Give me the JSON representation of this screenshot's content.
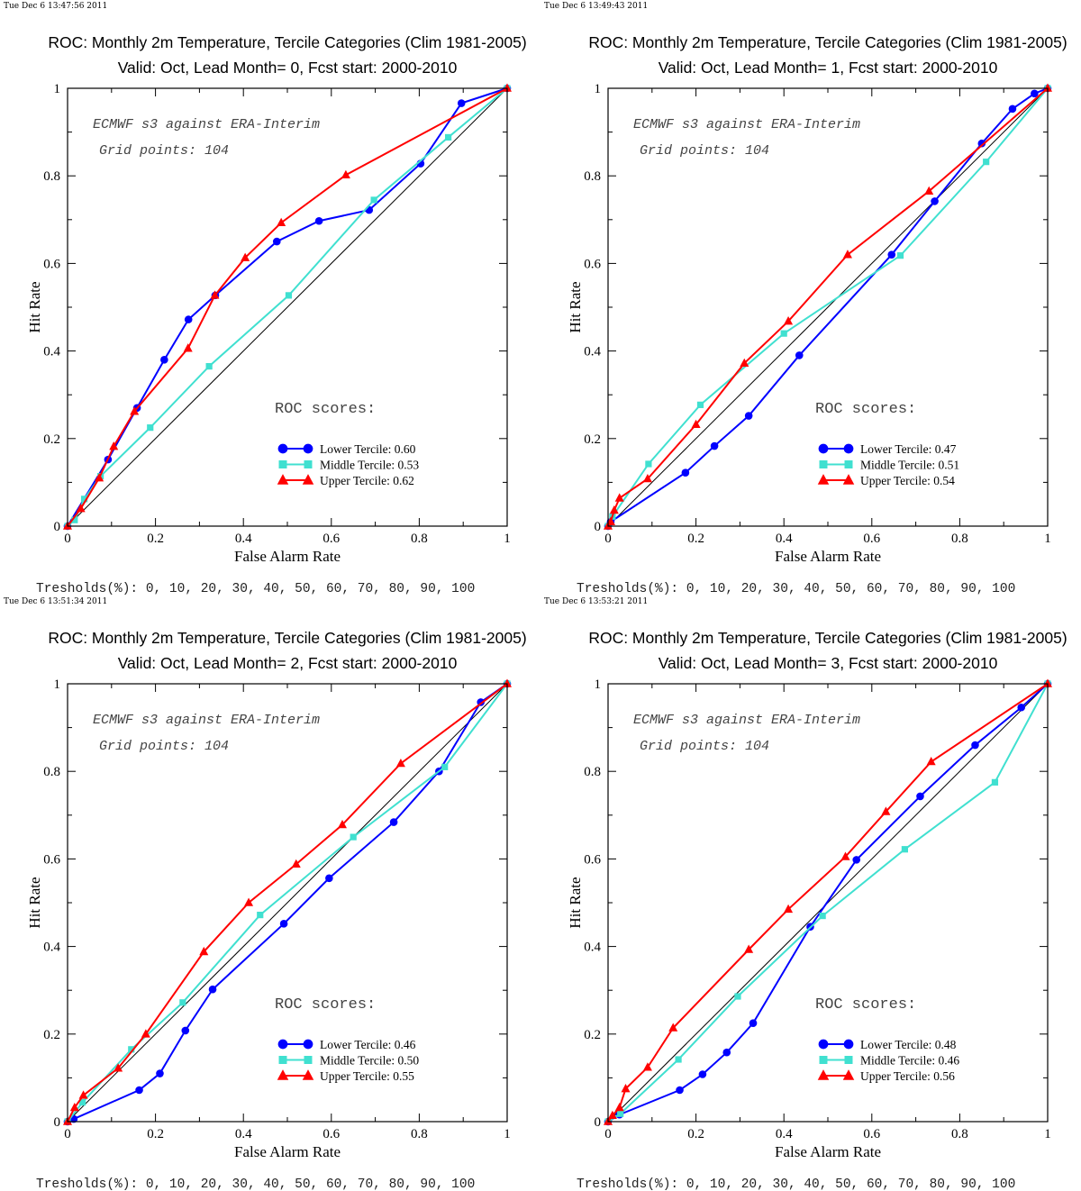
{
  "chart_data": [
    {
      "type": "line",
      "timestamp": "Tue Dec  6 13:47:56 2011",
      "title": "ROC: Monthly 2m Temperature, Tercile Categories (Clim 1981-2005)",
      "subtitle": "Valid: Oct, Lead Month= 0, Fcst start: 2000-2010",
      "xlabel": "False Alarm Rate",
      "ylabel": "Hit Rate",
      "xlim": [
        0,
        1
      ],
      "ylim": [
        0,
        1
      ],
      "xticks": [
        "0",
        "0.2",
        "0.4",
        "0.6",
        "0.8",
        "1"
      ],
      "yticks": [
        "0",
        "0.2",
        "0.4",
        "0.6",
        "0.8",
        "1"
      ],
      "annotation1": "ECMWF s3 against ERA-Interim",
      "annotation2": "Grid points:  104",
      "scores_heading": "ROC scores:",
      "thresholds": "Tresholds(%): 0, 10, 20, 30, 40, 50, 60, 70, 80, 90, 100",
      "series": [
        {
          "name": "Lower Tercile: 0.60",
          "color": "#0000ff",
          "marker": "circle",
          "x": [
            0,
            0.092,
            0.158,
            0.22,
            0.275,
            0.336,
            0.476,
            0.572,
            0.686,
            0.803,
            0.896,
            1
          ],
          "y": [
            0,
            0.152,
            0.27,
            0.38,
            0.472,
            0.527,
            0.65,
            0.697,
            0.722,
            0.828,
            0.966,
            1
          ]
        },
        {
          "name": "Middle Tercile: 0.53",
          "color": "#40e0d0",
          "marker": "square",
          "x": [
            0,
            0.016,
            0.038,
            0.075,
            0.188,
            0.322,
            0.503,
            0.697,
            0.866,
            1
          ],
          "y": [
            0,
            0.014,
            0.062,
            0.114,
            0.225,
            0.365,
            0.527,
            0.745,
            0.888,
            1
          ]
        },
        {
          "name": "Upper Tercile: 0.62",
          "color": "#ff0000",
          "marker": "triangle",
          "x": [
            0,
            0.03,
            0.072,
            0.105,
            0.152,
            0.274,
            0.335,
            0.404,
            0.486,
            0.633,
            1
          ],
          "y": [
            0,
            0.04,
            0.11,
            0.182,
            0.262,
            0.406,
            0.527,
            0.613,
            0.693,
            0.802,
            1
          ]
        }
      ]
    },
    {
      "type": "line",
      "timestamp": "Tue Dec  6 13:49:43 2011",
      "title": "ROC: Monthly 2m Temperature, Tercile Categories (Clim 1981-2005)",
      "subtitle": "Valid: Oct, Lead Month= 1, Fcst start: 2000-2010",
      "xlabel": "False Alarm Rate",
      "ylabel": "Hit Rate",
      "xlim": [
        0,
        1
      ],
      "ylim": [
        0,
        1
      ],
      "xticks": [
        "0",
        "0.2",
        "0.4",
        "0.6",
        "0.8",
        "1"
      ],
      "yticks": [
        "0",
        "0.2",
        "0.4",
        "0.6",
        "0.8",
        "1"
      ],
      "annotation1": "ECMWF s3 against ERA-Interim",
      "annotation2": "Grid points:  104",
      "scores_heading": "ROC scores:",
      "thresholds": "Tresholds(%): 0, 10, 20, 30, 40, 50, 60, 70, 80, 90, 100",
      "series": [
        {
          "name": "Lower Tercile: 0.47",
          "color": "#0000ff",
          "marker": "circle",
          "x": [
            0,
            0.006,
            0.176,
            0.242,
            0.32,
            0.435,
            0.645,
            0.743,
            0.85,
            0.92,
            0.97,
            1
          ],
          "y": [
            0,
            0.01,
            0.122,
            0.183,
            0.252,
            0.39,
            0.62,
            0.742,
            0.874,
            0.953,
            0.988,
            1
          ]
        },
        {
          "name": "Middle Tercile: 0.51",
          "color": "#40e0d0",
          "marker": "square",
          "x": [
            0,
            0.01,
            0.092,
            0.21,
            0.4,
            0.665,
            0.86,
            1
          ],
          "y": [
            0,
            0.022,
            0.142,
            0.277,
            0.44,
            0.618,
            0.832,
            1
          ]
        },
        {
          "name": "Upper Tercile: 0.54",
          "color": "#ff0000",
          "marker": "triangle",
          "x": [
            0,
            0.006,
            0.014,
            0.026,
            0.09,
            0.2,
            0.31,
            0.41,
            0.545,
            0.73,
            1
          ],
          "y": [
            0,
            0.01,
            0.036,
            0.064,
            0.108,
            0.232,
            0.372,
            0.468,
            0.62,
            0.765,
            1
          ]
        }
      ]
    },
    {
      "type": "line",
      "timestamp": "Tue Dec  6 13:51:34 2011",
      "title": "ROC: Monthly 2m Temperature, Tercile Categories (Clim 1981-2005)",
      "subtitle": "Valid: Oct, Lead Month= 2, Fcst start: 2000-2010",
      "xlabel": "False Alarm Rate",
      "ylabel": "Hit Rate",
      "xlim": [
        0,
        1
      ],
      "ylim": [
        0,
        1
      ],
      "xticks": [
        "0",
        "0.2",
        "0.4",
        "0.6",
        "0.8",
        "1"
      ],
      "yticks": [
        "0",
        "0.2",
        "0.4",
        "0.6",
        "0.8",
        "1"
      ],
      "annotation1": "ECMWF s3 against ERA-Interim",
      "annotation2": "Grid points:  104",
      "scores_heading": "ROC scores:",
      "thresholds": "Tresholds(%): 0, 10, 20, 30, 40, 50, 60, 70, 80, 90, 100",
      "series": [
        {
          "name": "Lower Tercile: 0.46",
          "color": "#0000ff",
          "marker": "circle",
          "x": [
            0,
            0.014,
            0.163,
            0.21,
            0.268,
            0.33,
            0.492,
            0.595,
            0.742,
            0.845,
            0.94,
            1
          ],
          "y": [
            0,
            0.006,
            0.072,
            0.11,
            0.208,
            0.302,
            0.452,
            0.556,
            0.684,
            0.8,
            0.958,
            1
          ]
        },
        {
          "name": "Middle Tercile: 0.50",
          "color": "#40e0d0",
          "marker": "square",
          "x": [
            0,
            0.034,
            0.145,
            0.262,
            0.438,
            0.65,
            0.858,
            1
          ],
          "y": [
            0,
            0.044,
            0.165,
            0.272,
            0.472,
            0.65,
            0.81,
            1
          ]
        },
        {
          "name": "Upper Tercile: 0.55",
          "color": "#ff0000",
          "marker": "triangle",
          "x": [
            0,
            0.016,
            0.036,
            0.115,
            0.178,
            0.31,
            0.412,
            0.52,
            0.625,
            0.758,
            1
          ],
          "y": [
            0,
            0.032,
            0.06,
            0.122,
            0.2,
            0.388,
            0.5,
            0.588,
            0.678,
            0.818,
            1
          ]
        }
      ]
    },
    {
      "type": "line",
      "timestamp": "Tue Dec  6 13:53:21 2011",
      "title": "ROC: Monthly 2m Temperature, Tercile Categories (Clim 1981-2005)",
      "subtitle": "Valid: Oct, Lead Month= 3, Fcst start: 2000-2010",
      "xlabel": "False Alarm Rate",
      "ylabel": "Hit Rate",
      "xlim": [
        0,
        1
      ],
      "ylim": [
        0,
        1
      ],
      "xticks": [
        "0",
        "0.2",
        "0.4",
        "0.6",
        "0.8",
        "1"
      ],
      "yticks": [
        "0",
        "0.2",
        "0.4",
        "0.6",
        "0.8",
        "1"
      ],
      "annotation1": "ECMWF s3 against ERA-Interim",
      "annotation2": "Grid points:  104",
      "scores_heading": "ROC scores:",
      "thresholds": "Tresholds(%): 0, 10, 20, 30, 40, 50, 60, 70, 80, 90, 100",
      "series": [
        {
          "name": "Lower Tercile: 0.48",
          "color": "#0000ff",
          "marker": "circle",
          "x": [
            0,
            0.026,
            0.163,
            0.215,
            0.27,
            0.33,
            0.46,
            0.565,
            0.71,
            0.835,
            0.94,
            1
          ],
          "y": [
            0,
            0.016,
            0.072,
            0.108,
            0.158,
            0.225,
            0.445,
            0.598,
            0.743,
            0.86,
            0.946,
            1
          ]
        },
        {
          "name": "Middle Tercile: 0.46",
          "color": "#40e0d0",
          "marker": "square",
          "x": [
            0,
            0.028,
            0.16,
            0.295,
            0.488,
            0.675,
            0.88,
            1
          ],
          "y": [
            0,
            0.018,
            0.142,
            0.286,
            0.47,
            0.622,
            0.775,
            1
          ]
        },
        {
          "name": "Upper Tercile: 0.56",
          "color": "#ff0000",
          "marker": "triangle",
          "x": [
            0,
            0.01,
            0.026,
            0.04,
            0.09,
            0.148,
            0.32,
            0.41,
            0.54,
            0.632,
            0.735,
            1
          ],
          "y": [
            0,
            0.014,
            0.032,
            0.075,
            0.124,
            0.214,
            0.393,
            0.485,
            0.605,
            0.708,
            0.822,
            1
          ]
        }
      ]
    }
  ]
}
